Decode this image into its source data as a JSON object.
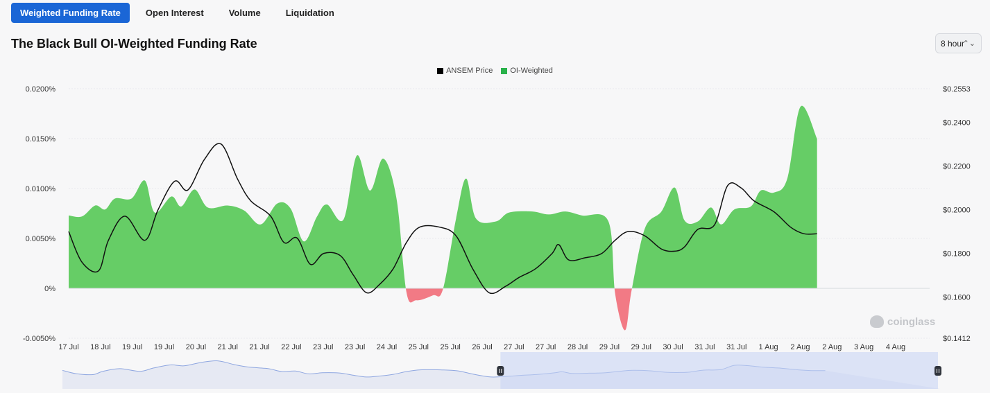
{
  "tabs": [
    {
      "label": "Weighted Funding Rate",
      "active": true
    },
    {
      "label": "Open Interest",
      "active": false
    },
    {
      "label": "Volume",
      "active": false
    },
    {
      "label": "Liquidation",
      "active": false
    }
  ],
  "title": "The Black Bull OI-Weighted Funding Rate",
  "interval": {
    "value": "8 hour"
  },
  "legend": [
    {
      "label": "ANSEM Price",
      "color": "#000000"
    },
    {
      "label": "OI-Weighted",
      "color": "#2ab24b"
    }
  ],
  "watermark": "coinglass",
  "colors": {
    "positive": "#66cd66",
    "negative": "#f27a85",
    "price_line": "#111111",
    "navigator_fill": "#dde3f5",
    "navigator_line": "#8ea6e0"
  },
  "chart_data": {
    "type": "area",
    "x": [
      "17 Jul",
      "18 Jul",
      "19 Jul",
      "19 Jul",
      "20 Jul",
      "21 Jul",
      "21 Jul",
      "22 Jul",
      "23 Jul",
      "23 Jul",
      "24 Jul",
      "25 Jul",
      "25 Jul",
      "26 Jul",
      "27 Jul",
      "27 Jul",
      "28 Jul",
      "29 Jul",
      "29 Jul",
      "30 Jul",
      "31 Jul",
      "31 Jul",
      "1 Aug",
      "2 Aug",
      "2 Aug",
      "3 Aug",
      "4 Aug"
    ],
    "y_left": {
      "ticks": [
        "0.0200%",
        "0.0150%",
        "0.0100%",
        "0.0050%",
        "0%",
        "-0.0050%"
      ],
      "range": [
        -0.005,
        0.02
      ],
      "unit": "%"
    },
    "y_right": {
      "ticks": [
        "$0.2553",
        "$0.2400",
        "$0.2200",
        "$0.2000",
        "$0.1800",
        "$0.1600",
        "$0.1412"
      ],
      "range": [
        0.1412,
        0.2553
      ]
    },
    "series": [
      {
        "name": "OI-Weighted",
        "axis": "left",
        "points": [
          [
            0,
            0.0073
          ],
          [
            0.4,
            0.0072
          ],
          [
            0.8,
            0.0083
          ],
          [
            1.1,
            0.0079
          ],
          [
            1.4,
            0.009
          ],
          [
            1.9,
            0.009
          ],
          [
            2.3,
            0.0108
          ],
          [
            2.6,
            0.0076
          ],
          [
            3.1,
            0.0092
          ],
          [
            3.4,
            0.0082
          ],
          [
            3.8,
            0.0099
          ],
          [
            4.2,
            0.0081
          ],
          [
            4.8,
            0.0083
          ],
          [
            5.3,
            0.0078
          ],
          [
            5.8,
            0.0064
          ],
          [
            6.3,
            0.0085
          ],
          [
            6.7,
            0.008
          ],
          [
            7.1,
            0.0047
          ],
          [
            7.5,
            0.0072
          ],
          [
            7.8,
            0.0084
          ],
          [
            8.3,
            0.0069
          ],
          [
            8.7,
            0.0133
          ],
          [
            9.1,
            0.0098
          ],
          [
            9.5,
            0.013
          ],
          [
            9.9,
            0.009
          ],
          [
            10.2,
            -0.0004
          ],
          [
            10.5,
            -0.0012
          ],
          [
            11.0,
            -0.0007
          ],
          [
            11.3,
            -0.0001
          ],
          [
            11.7,
            0.007
          ],
          [
            12.0,
            0.011
          ],
          [
            12.3,
            0.007
          ],
          [
            12.9,
            0.0067
          ],
          [
            13.3,
            0.0076
          ],
          [
            14.0,
            0.0077
          ],
          [
            14.5,
            0.0074
          ],
          [
            15.0,
            0.0077
          ],
          [
            15.5,
            0.0073
          ],
          [
            16.3,
            0.0067
          ],
          [
            16.5,
            -0.0005
          ],
          [
            16.8,
            -0.0042
          ],
          [
            17.0,
            -0.0002
          ],
          [
            17.4,
            0.006
          ],
          [
            17.9,
            0.0077
          ],
          [
            18.3,
            0.0101
          ],
          [
            18.6,
            0.0068
          ],
          [
            19.0,
            0.0067
          ],
          [
            19.4,
            0.0081
          ],
          [
            19.7,
            0.0064
          ],
          [
            20.1,
            0.0079
          ],
          [
            20.6,
            0.0082
          ],
          [
            20.9,
            0.0098
          ],
          [
            21.3,
            0.0096
          ],
          [
            21.7,
            0.011
          ],
          [
            22.1,
            0.0182
          ],
          [
            22.6,
            0.015
          ]
        ]
      },
      {
        "name": "ANSEM Price",
        "axis": "right",
        "points": [
          [
            0,
            0.19
          ],
          [
            0.4,
            0.176
          ],
          [
            0.9,
            0.172
          ],
          [
            1.2,
            0.186
          ],
          [
            1.7,
            0.197
          ],
          [
            2.3,
            0.186
          ],
          [
            2.7,
            0.2
          ],
          [
            3.2,
            0.213
          ],
          [
            3.6,
            0.209
          ],
          [
            4.1,
            0.223
          ],
          [
            4.6,
            0.23
          ],
          [
            5.1,
            0.214
          ],
          [
            5.5,
            0.204
          ],
          [
            6.1,
            0.197
          ],
          [
            6.5,
            0.185
          ],
          [
            6.9,
            0.187
          ],
          [
            7.3,
            0.175
          ],
          [
            7.7,
            0.18
          ],
          [
            8.2,
            0.179
          ],
          [
            8.6,
            0.17
          ],
          [
            9.0,
            0.162
          ],
          [
            9.4,
            0.166
          ],
          [
            9.8,
            0.173
          ],
          [
            10.2,
            0.185
          ],
          [
            10.6,
            0.192
          ],
          [
            11.2,
            0.192
          ],
          [
            11.7,
            0.188
          ],
          [
            12.2,
            0.173
          ],
          [
            12.7,
            0.162
          ],
          [
            13.2,
            0.165
          ],
          [
            13.6,
            0.169
          ],
          [
            14.1,
            0.173
          ],
          [
            14.6,
            0.18
          ],
          [
            14.8,
            0.184
          ],
          [
            15.1,
            0.177
          ],
          [
            15.6,
            0.178
          ],
          [
            16.1,
            0.18
          ],
          [
            16.5,
            0.186
          ],
          [
            16.9,
            0.19
          ],
          [
            17.4,
            0.188
          ],
          [
            17.9,
            0.182
          ],
          [
            18.3,
            0.181
          ],
          [
            18.6,
            0.183
          ],
          [
            19.0,
            0.191
          ],
          [
            19.5,
            0.193
          ],
          [
            19.9,
            0.211
          ],
          [
            20.3,
            0.21
          ],
          [
            20.7,
            0.204
          ],
          [
            21.3,
            0.199
          ],
          [
            21.8,
            0.192
          ],
          [
            22.2,
            0.189
          ],
          [
            22.6,
            0.189
          ]
        ]
      }
    ],
    "grid": true,
    "legend_position": "top-center",
    "navigator": {
      "selected_from": "26 Jul",
      "selected_to": "4 Aug"
    }
  }
}
